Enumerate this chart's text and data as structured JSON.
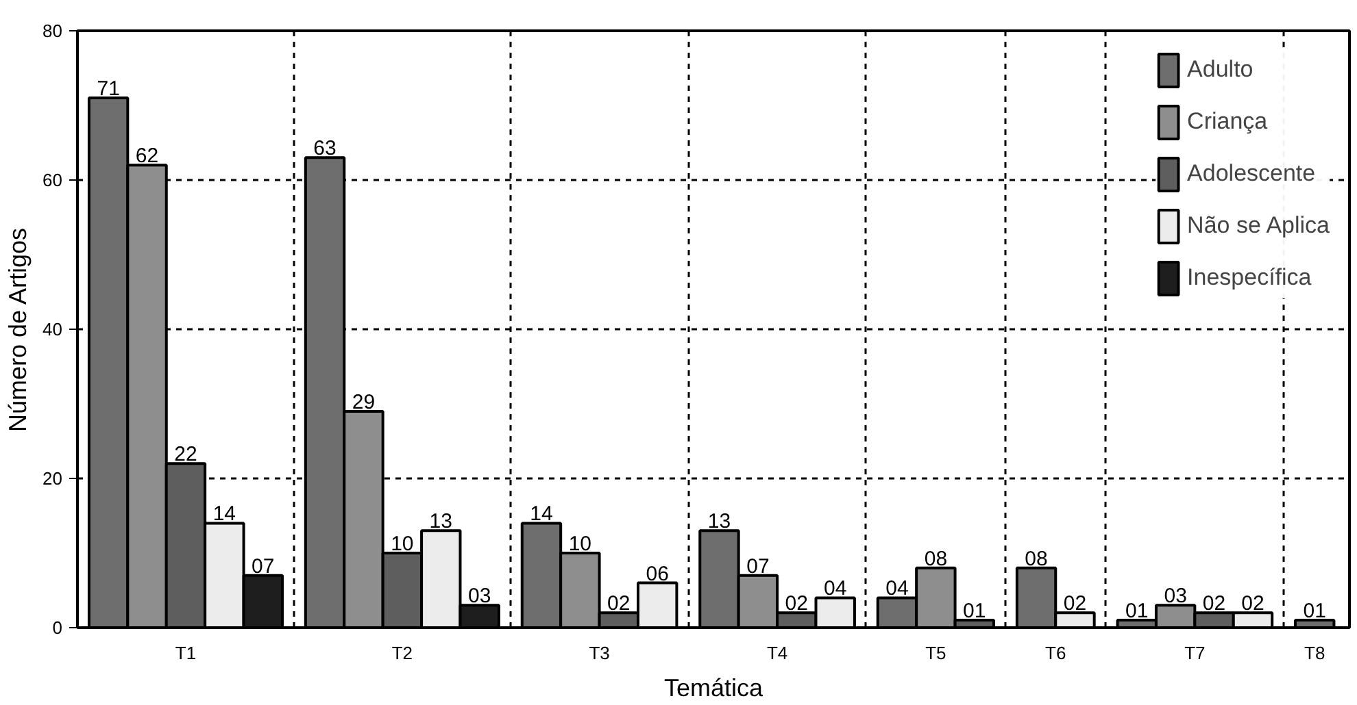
{
  "chart_data": {
    "type": "bar",
    "xlabel": "Temática",
    "ylabel": "Número de Artigos",
    "categories": [
      "T1",
      "T2",
      "T3",
      "T4",
      "T5",
      "T6",
      "T7",
      "T8"
    ],
    "series": [
      {
        "name": "Adulto",
        "color": "#6e6e6e",
        "values": [
          71,
          63,
          14,
          13,
          4,
          8,
          1,
          1
        ],
        "value_labels": [
          "71",
          "63",
          "14",
          "13",
          "04",
          "08",
          "01",
          "01"
        ]
      },
      {
        "name": "Criança",
        "color": "#8e8e8e",
        "values": [
          62,
          29,
          10,
          7,
          8,
          null,
          3,
          null
        ],
        "value_labels": [
          "62",
          "29",
          "10",
          "07",
          "08",
          null,
          "03",
          null
        ]
      },
      {
        "name": "Adolescente",
        "color": "#5e5e5e",
        "values": [
          22,
          10,
          2,
          2,
          1,
          null,
          2,
          null
        ],
        "value_labels": [
          "22",
          "10",
          "02",
          "02",
          "01",
          null,
          "02",
          null
        ]
      },
      {
        "name": "Não se Aplica",
        "color": "#ececec",
        "values": [
          14,
          13,
          6,
          4,
          null,
          2,
          2,
          null
        ],
        "value_labels": [
          "14",
          "13",
          "06",
          "04",
          null,
          "02",
          "02",
          null
        ]
      },
      {
        "name": "Inespecífica",
        "color": "#1e1e1e",
        "values": [
          7,
          3,
          null,
          null,
          null,
          null,
          null,
          null
        ],
        "value_labels": [
          "07",
          "03",
          null,
          null,
          null,
          null,
          null,
          null
        ]
      }
    ],
    "ylim": [
      0,
      80
    ],
    "yticks": [
      0,
      20,
      40,
      60,
      80
    ],
    "grid": true,
    "legend": "top right"
  }
}
